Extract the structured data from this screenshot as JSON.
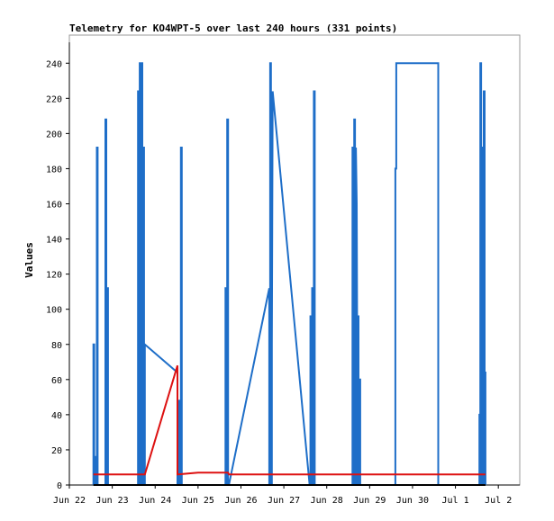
{
  "chart_data": {
    "type": "line",
    "title": "Telemetry for KO4WPT-5 over last 240 hours (331 points)",
    "xlabel": "",
    "ylabel": "Values",
    "x_ticks": [
      "Jun 22",
      "Jun 23",
      "Jun 24",
      "Jun 25",
      "Jun 26",
      "Jun 27",
      "Jun 28",
      "Jun 29",
      "Jun 30",
      "Jul 1",
      "Jul 2"
    ],
    "xlim": [
      0,
      10.5
    ],
    "ylim": [
      0,
      256
    ],
    "y_ticks": [
      0,
      20,
      40,
      60,
      80,
      100,
      120,
      140,
      160,
      180,
      200,
      220,
      240
    ],
    "grid": false,
    "colors": {
      "series_blue": "#1e6ec8",
      "series_red": "#dd1111",
      "series_black": "#000000",
      "axis": "#000000",
      "frame": "#999999"
    },
    "series": [
      {
        "color": "#1e6ec8",
        "points": [
          [
            0.56,
            0
          ],
          [
            0.56,
            80
          ],
          [
            0.58,
            80
          ],
          [
            0.58,
            0
          ],
          [
            0.6,
            0
          ],
          [
            0.6,
            16
          ],
          [
            0.62,
            16
          ],
          [
            0.62,
            0
          ],
          [
            0.64,
            0
          ],
          [
            0.64,
            192
          ],
          [
            0.66,
            192
          ],
          [
            0.66,
            0
          ],
          [
            0.84,
            0
          ],
          [
            0.84,
            208
          ],
          [
            0.86,
            208
          ],
          [
            0.86,
            0
          ],
          [
            0.88,
            0
          ],
          [
            0.88,
            112
          ],
          [
            0.9,
            112
          ],
          [
            0.9,
            0
          ],
          [
            1.6,
            0
          ],
          [
            1.6,
            224
          ],
          [
            1.62,
            224
          ],
          [
            1.62,
            0
          ],
          [
            1.64,
            0
          ],
          [
            1.64,
            240
          ],
          [
            1.66,
            240
          ],
          [
            1.66,
            0
          ],
          [
            1.68,
            0
          ],
          [
            1.68,
            240
          ],
          [
            1.7,
            240
          ],
          [
            1.7,
            0
          ],
          [
            1.72,
            0
          ],
          [
            1.72,
            192
          ],
          [
            1.74,
            192
          ],
          [
            1.74,
            0
          ],
          [
            1.76,
            0
          ],
          [
            1.76,
            80
          ],
          [
            2.52,
            64
          ],
          [
            2.52,
            0
          ],
          [
            2.56,
            0
          ],
          [
            2.56,
            48
          ],
          [
            2.58,
            48
          ],
          [
            2.58,
            0
          ],
          [
            2.6,
            0
          ],
          [
            2.6,
            192
          ],
          [
            2.62,
            192
          ],
          [
            2.62,
            0
          ],
          [
            3.64,
            0
          ],
          [
            3.64,
            112
          ],
          [
            3.66,
            112
          ],
          [
            3.66,
            0
          ],
          [
            3.68,
            0
          ],
          [
            3.68,
            208
          ],
          [
            3.7,
            208
          ],
          [
            3.7,
            0
          ],
          [
            3.72,
            0
          ],
          [
            4.66,
            112
          ],
          [
            4.66,
            0
          ],
          [
            4.68,
            0
          ],
          [
            4.68,
            240
          ],
          [
            4.7,
            240
          ],
          [
            4.7,
            0
          ],
          [
            4.72,
            0
          ],
          [
            4.72,
            80
          ],
          [
            4.74,
            224
          ],
          [
            5.6,
            0
          ],
          [
            5.62,
            0
          ],
          [
            5.62,
            96
          ],
          [
            5.64,
            96
          ],
          [
            5.64,
            0
          ],
          [
            5.66,
            0
          ],
          [
            5.66,
            112
          ],
          [
            5.68,
            112
          ],
          [
            5.68,
            0
          ],
          [
            5.7,
            0
          ],
          [
            5.7,
            224
          ],
          [
            5.72,
            224
          ],
          [
            5.72,
            0
          ],
          [
            6.6,
            0
          ],
          [
            6.6,
            192
          ],
          [
            6.62,
            192
          ],
          [
            6.62,
            0
          ],
          [
            6.64,
            0
          ],
          [
            6.64,
            208
          ],
          [
            6.66,
            208
          ],
          [
            6.66,
            0
          ],
          [
            6.68,
            0
          ],
          [
            6.68,
            192
          ],
          [
            6.7,
            160
          ],
          [
            6.72,
            0
          ],
          [
            6.72,
            96
          ],
          [
            6.74,
            96
          ],
          [
            6.74,
            0
          ],
          [
            6.76,
            0
          ],
          [
            6.76,
            60
          ],
          [
            6.78,
            60
          ],
          [
            6.78,
            0
          ],
          [
            7.6,
            0
          ],
          [
            7.6,
            180
          ],
          [
            7.62,
            180
          ],
          [
            7.62,
            240
          ],
          [
            8.6,
            240
          ],
          [
            8.6,
            0
          ],
          [
            9.56,
            0
          ],
          [
            9.56,
            40
          ],
          [
            9.58,
            40
          ],
          [
            9.58,
            240
          ],
          [
            9.6,
            240
          ],
          [
            9.6,
            0
          ],
          [
            9.62,
            0
          ],
          [
            9.62,
            192
          ],
          [
            9.64,
            192
          ],
          [
            9.64,
            0
          ],
          [
            9.66,
            0
          ],
          [
            9.66,
            224
          ],
          [
            9.68,
            224
          ],
          [
            9.68,
            64
          ],
          [
            9.7,
            64
          ],
          [
            9.7,
            0
          ]
        ]
      },
      {
        "color": "#dd1111",
        "points": [
          [
            0.56,
            6
          ],
          [
            1.76,
            6
          ],
          [
            2.52,
            68
          ],
          [
            2.52,
            6
          ],
          [
            3.0,
            7
          ],
          [
            3.7,
            7
          ],
          [
            3.72,
            6
          ],
          [
            9.7,
            6
          ]
        ]
      },
      {
        "color": "#000000",
        "points": [
          [
            0.56,
            0
          ],
          [
            9.7,
            0
          ]
        ]
      }
    ]
  }
}
